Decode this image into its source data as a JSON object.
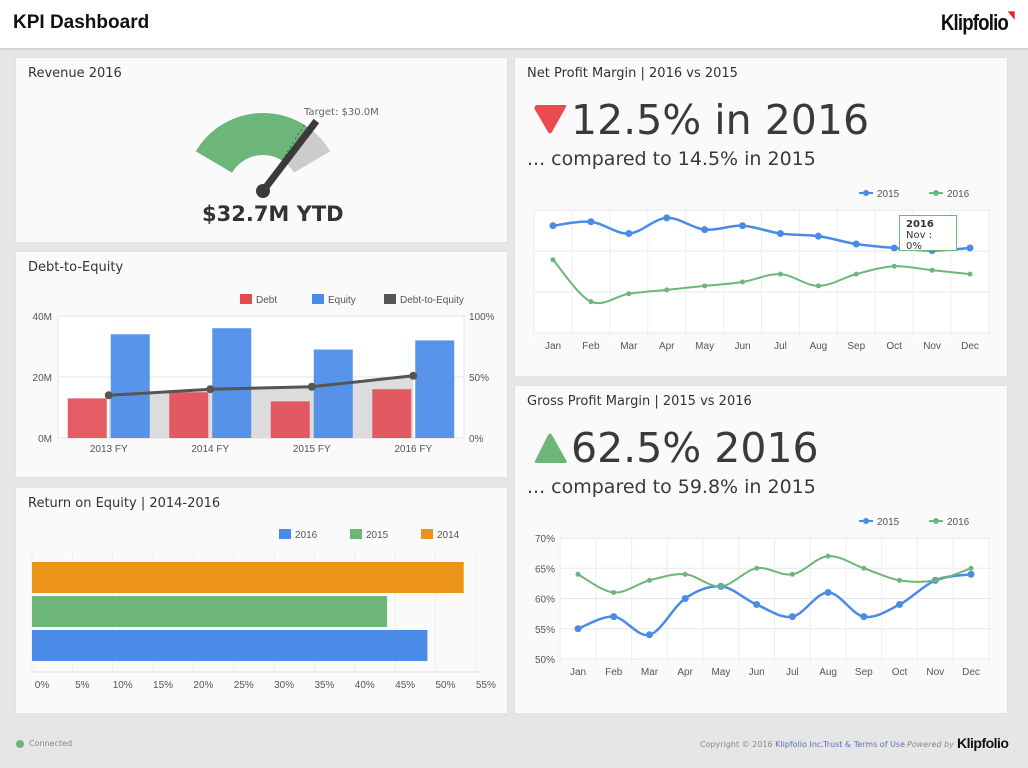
{
  "header": {
    "title": "KPI Dashboard",
    "logo": "Klipfolio"
  },
  "revenue": {
    "title": "Revenue 2016",
    "value": "$32.7M YTD",
    "target_label": "Target: $30.0M",
    "actual_m": 32.7,
    "target_m": 30.0,
    "colors": {
      "fill": "#6cb67a",
      "remainder": "#cccccc",
      "needle": "#3a3a3a"
    }
  },
  "debt": {
    "title": "Debt-to-Equity"
  },
  "roe": {
    "title": "Return on Equity | 2014-2016"
  },
  "net": {
    "title": "Net Profit Margin | 2016 vs 2015",
    "headline": "12.5% in 2016",
    "compare": "... compared to 14.5% in 2015",
    "trend": "down",
    "trend_color": "#e94b4f",
    "tooltip": {
      "title": "2016",
      "text": "Nov : 0%"
    }
  },
  "gross": {
    "title": "Gross Profit Margin | 2015 vs 2016",
    "headline": "62.5% 2016",
    "compare": "... compared to 59.8% in 2015",
    "trend": "up",
    "trend_color": "#6cb67a"
  },
  "chart_data": [
    {
      "id": "debt",
      "type": "bar",
      "categories": [
        "2013 FY",
        "2014 FY",
        "2015 FY",
        "2016 FY"
      ],
      "series": [
        {
          "name": "Debt",
          "color": "#e34a54",
          "values": [
            13,
            15,
            12,
            16
          ]
        },
        {
          "name": "Equity",
          "color": "#4a8be8",
          "values": [
            34,
            36,
            29,
            32
          ]
        },
        {
          "name": "Debt-to-Equity",
          "color": "#555555",
          "axis": "right",
          "type": "line",
          "values": [
            35,
            40,
            42,
            51
          ]
        }
      ],
      "ylim": [
        0,
        40
      ],
      "yticks": [
        "0M",
        "20M",
        "40M"
      ],
      "y2lim": [
        0,
        100
      ],
      "y2ticks": [
        "0%",
        "50%",
        "100%"
      ],
      "legend": "top-right",
      "grid": true
    },
    {
      "id": "roe",
      "type": "bar",
      "orientation": "horizontal",
      "series": [
        {
          "name": "2016",
          "color": "#4a8be8",
          "value": 49
        },
        {
          "name": "2015",
          "color": "#6cb67a",
          "value": 44
        },
        {
          "name": "2014",
          "color": "#ec9419",
          "value": 53.5
        }
      ],
      "xlim": [
        0,
        55
      ],
      "xticks": [
        "0%",
        "5%",
        "10%",
        "15%",
        "20%",
        "25%",
        "30%",
        "35%",
        "40%",
        "45%",
        "50%",
        "55%"
      ],
      "legend": "top-right",
      "grid": true
    },
    {
      "id": "net",
      "type": "line",
      "categories": [
        "Jan",
        "Feb",
        "Mar",
        "Apr",
        "May",
        "Jun",
        "Jul",
        "Aug",
        "Sep",
        "Oct",
        "Nov",
        "Dec"
      ],
      "series": [
        {
          "name": "2015",
          "color": "#4a8be8",
          "values": [
            16.2,
            16.5,
            15.6,
            16.8,
            15.9,
            16.2,
            15.6,
            15.4,
            14.8,
            14.5,
            14.3,
            14.5
          ]
        },
        {
          "name": "2016",
          "color": "#6cb67a",
          "values": [
            13.6,
            10.4,
            11.0,
            11.3,
            11.6,
            11.9,
            12.5,
            11.6,
            12.5,
            13.1,
            12.8,
            12.5
          ]
        }
      ],
      "ylim": [
        8,
        17.4
      ],
      "legend": "top-right",
      "grid": true
    },
    {
      "id": "gross",
      "type": "line",
      "categories": [
        "Jan",
        "Feb",
        "Mar",
        "Apr",
        "May",
        "Jun",
        "Jul",
        "Aug",
        "Sep",
        "Oct",
        "Nov",
        "Dec"
      ],
      "series": [
        {
          "name": "2015",
          "color": "#4a8be8",
          "values": [
            55,
            57,
            54,
            60,
            62,
            59,
            57,
            61,
            57,
            59,
            63,
            64
          ]
        },
        {
          "name": "2016",
          "color": "#6cb67a",
          "values": [
            64,
            61,
            63,
            64,
            62,
            65,
            64,
            67,
            65,
            63,
            63,
            65
          ]
        }
      ],
      "ylim": [
        50,
        70
      ],
      "yticks": [
        "50%",
        "55%",
        "60%",
        "65%",
        "70%"
      ],
      "legend": "top-right",
      "grid": true
    }
  ],
  "footer": {
    "status": "Connected",
    "status_color": "#6cb67a",
    "copyright": "Copyright © 2016",
    "company": "Klipfolio Inc.",
    "terms": "Trust & Terms of Use",
    "powered": "Powered by",
    "logo": "Klipfolio"
  }
}
